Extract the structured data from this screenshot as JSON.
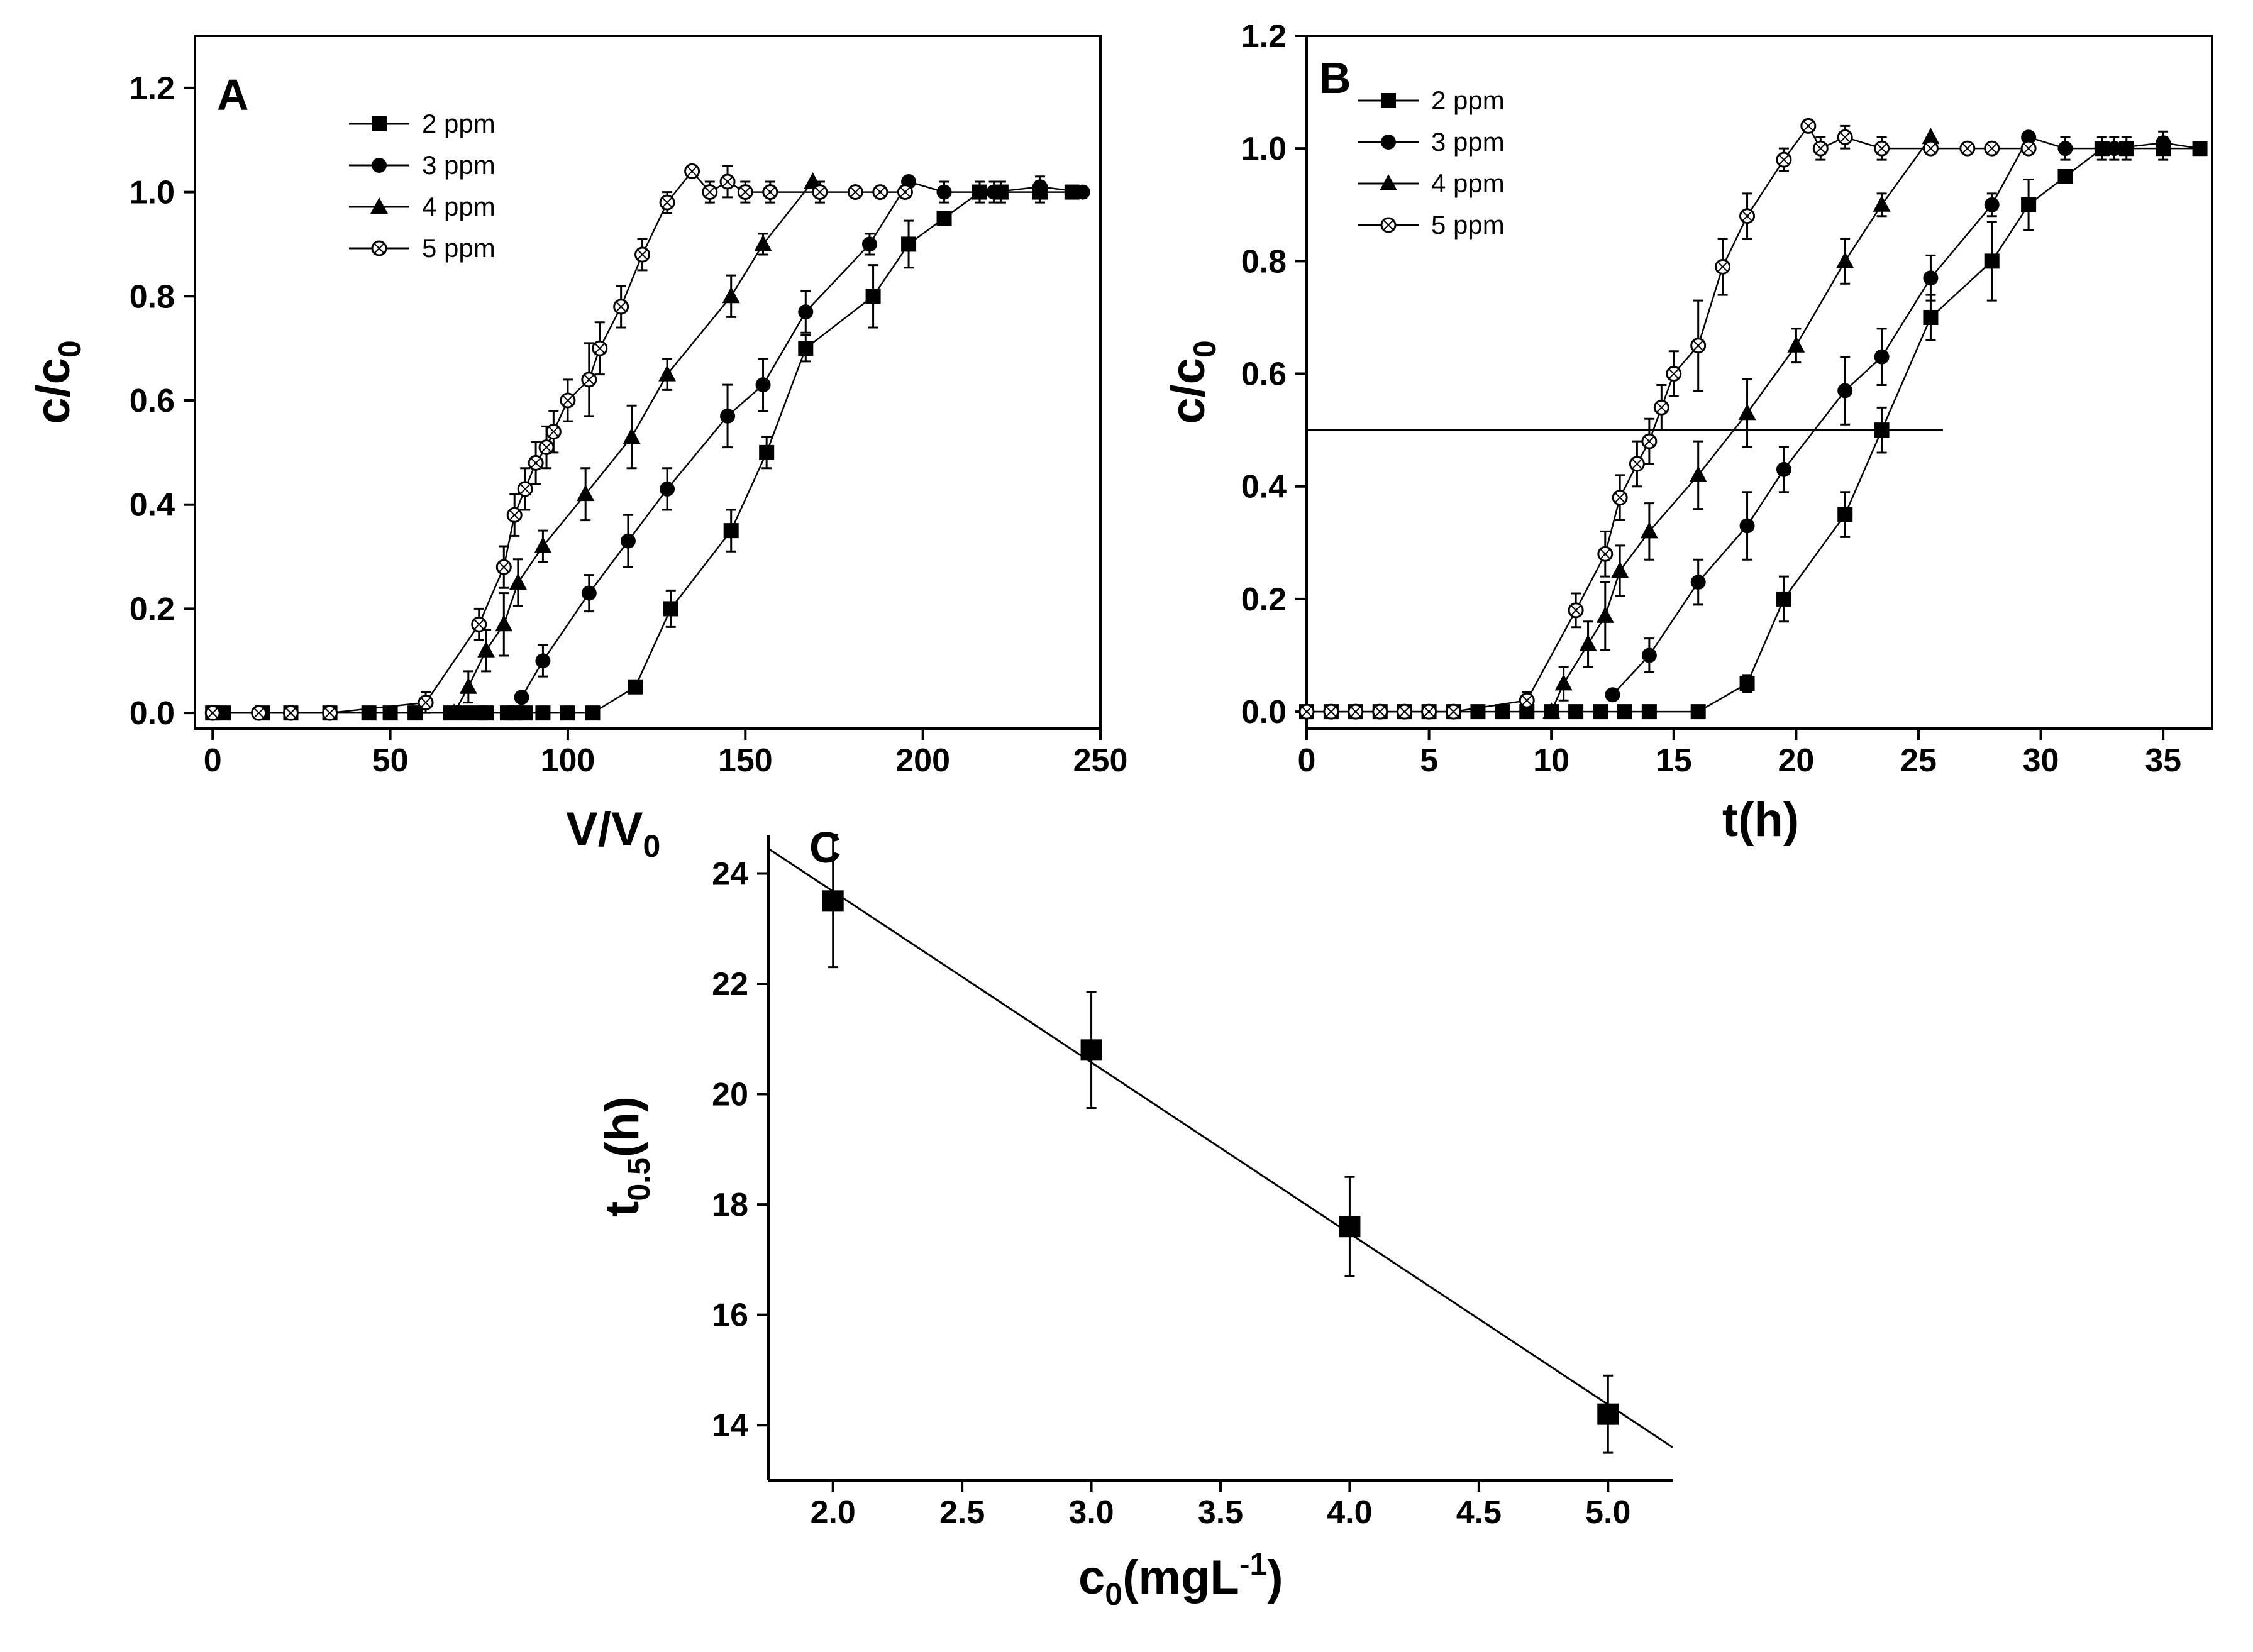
{
  "chart_data": [
    {
      "panel": "A",
      "type": "line",
      "xlabel": "V/V",
      "xlabel_sub": "0",
      "ylabel": "c/c",
      "ylabel_sub": "0",
      "xlim": [
        -5,
        250
      ],
      "ylim": [
        -0.03,
        1.3
      ],
      "xticks": [
        0,
        50,
        100,
        150,
        200,
        250
      ],
      "xtick_labels": [
        "0",
        "50",
        "100",
        "150",
        "200",
        "250"
      ],
      "yticks": [
        0.0,
        0.2,
        0.4,
        0.6,
        0.8,
        1.0,
        1.2
      ],
      "ytick_labels": [
        "0.0",
        "0.2",
        "0.4",
        "0.6",
        "0.8",
        "1.0",
        "1.2"
      ],
      "legend": [
        "2 ppm",
        "3 ppm",
        "4 ppm",
        "5 ppm"
      ],
      "series": [
        {
          "name": "2 ppm",
          "marker": "square",
          "x": [
            0,
            3,
            14,
            22,
            33,
            44,
            50,
            57,
            67,
            71,
            75,
            77,
            83,
            85,
            88,
            93,
            100,
            107,
            119,
            129,
            146,
            156,
            167,
            186,
            196,
            206,
            216,
            222,
            233,
            242
          ],
          "y": [
            0,
            0,
            0,
            0,
            0,
            0,
            0,
            0,
            0,
            0,
            0,
            0,
            0,
            0,
            0,
            0,
            0,
            0,
            0.05,
            0.2,
            0.35,
            0.5,
            0.7,
            0.8,
            0.9,
            0.95,
            1.0,
            1.0,
            1.0,
            1.0
          ],
          "err": [
            0,
            0,
            0,
            0,
            0,
            0,
            0,
            0,
            0,
            0,
            0,
            0,
            0,
            0,
            0,
            0,
            0,
            0,
            0.01,
            0.035,
            0.04,
            0.03,
            0.025,
            0.06,
            0.045,
            0,
            0.02,
            0.02,
            0.02,
            0
          ]
        },
        {
          "name": "3 ppm",
          "marker": "circle",
          "x": [
            87,
            93,
            106,
            117,
            128,
            145,
            155,
            167,
            185,
            196,
            206,
            220,
            233,
            245
          ],
          "y": [
            0.03,
            0.1,
            0.23,
            0.33,
            0.43,
            0.57,
            0.63,
            0.77,
            0.9,
            1.02,
            1.0,
            1.0,
            1.01,
            1.0
          ],
          "err": [
            0,
            0.03,
            0.035,
            0.05,
            0.04,
            0.06,
            0.05,
            0.04,
            0.02,
            0,
            0.02,
            0.02,
            0.02,
            0
          ]
        },
        {
          "name": "4 ppm",
          "marker": "triangle",
          "x": [
            68,
            72,
            77,
            82,
            86,
            93,
            105,
            118,
            128,
            146,
            155,
            169
          ],
          "y": [
            0,
            0.05,
            0.12,
            0.17,
            0.25,
            0.32,
            0.42,
            0.53,
            0.65,
            0.8,
            0.9,
            1.02
          ],
          "err": [
            0,
            0.03,
            0.04,
            0.06,
            0.045,
            0.03,
            0.05,
            0.06,
            0.03,
            0.04,
            0.02,
            0
          ]
        },
        {
          "name": "5 ppm",
          "marker": "circle-open",
          "x": [
            0,
            13,
            22,
            33,
            60,
            75,
            82,
            85,
            88,
            91,
            94,
            96,
            100,
            106,
            109,
            115,
            121,
            128,
            135,
            140,
            145,
            150,
            157,
            171,
            181,
            188,
            195
          ],
          "y": [
            0,
            0,
            0,
            0,
            0.02,
            0.17,
            0.28,
            0.38,
            0.43,
            0.48,
            0.51,
            0.54,
            0.6,
            0.64,
            0.7,
            0.78,
            0.88,
            0.98,
            1.04,
            1.0,
            1.02,
            1.0,
            1.0,
            1.0,
            1.0,
            1.0,
            1.0
          ],
          "err": [
            0,
            0,
            0,
            0,
            0.02,
            0.03,
            0.04,
            0.04,
            0.04,
            0.04,
            0.04,
            0.04,
            0.04,
            0.07,
            0.05,
            0.04,
            0.03,
            0.02,
            0,
            0.02,
            0.03,
            0.02,
            0.02,
            0.02,
            0,
            0,
            0
          ]
        }
      ]
    },
    {
      "panel": "B",
      "type": "line",
      "xlabel": "t(h)",
      "ylabel": "c/c",
      "ylabel_sub": "0",
      "xlim": [
        0,
        37
      ],
      "ylim": [
        -0.03,
        1.2
      ],
      "xticks": [
        0,
        5,
        10,
        15,
        20,
        25,
        30,
        35
      ],
      "xtick_labels": [
        "0",
        "5",
        "10",
        "15",
        "20",
        "25",
        "30",
        "35"
      ],
      "yticks": [
        0.0,
        0.2,
        0.4,
        0.6,
        0.8,
        1.0,
        1.2
      ],
      "ytick_labels": [
        "0.0",
        "0.2",
        "0.4",
        "0.6",
        "0.8",
        "1.0",
        "1.2"
      ],
      "legend": [
        "2 ppm",
        "3 ppm",
        "4 ppm",
        "5 ppm"
      ],
      "reference_line": {
        "y": 0.5,
        "x_from": 0,
        "x_to": 26
      },
      "series": [
        {
          "name": "2 ppm",
          "marker": "square",
          "x": [
            0,
            1,
            2,
            3,
            4,
            5,
            6,
            7,
            8,
            9,
            10,
            11,
            12,
            13,
            14,
            16,
            18,
            19.5,
            22,
            23.5,
            25.5,
            28,
            29.5,
            31,
            32.5,
            33.5,
            35,
            36.5
          ],
          "y": [
            0,
            0,
            0,
            0,
            0,
            0,
            0,
            0,
            0,
            0,
            0,
            0,
            0,
            0,
            0,
            0,
            0.05,
            0.2,
            0.35,
            0.5,
            0.7,
            0.8,
            0.9,
            0.95,
            1.0,
            1.0,
            1.0,
            1.0
          ],
          "err": [
            0,
            0,
            0,
            0,
            0,
            0,
            0,
            0,
            0,
            0,
            0,
            0,
            0,
            0,
            0,
            0,
            0.015,
            0.04,
            0.04,
            0.04,
            0.04,
            0.07,
            0.045,
            0,
            0.02,
            0.02,
            0.02,
            0
          ]
        },
        {
          "name": "3 ppm",
          "marker": "circle",
          "x": [
            12.5,
            14,
            16,
            18,
            19.5,
            22,
            23.5,
            25.5,
            28,
            29.5,
            31,
            33,
            35,
            36.5
          ],
          "y": [
            0.03,
            0.1,
            0.23,
            0.33,
            0.43,
            0.57,
            0.63,
            0.77,
            0.9,
            1.02,
            1.0,
            1.0,
            1.01,
            1.0
          ],
          "err": [
            0,
            0.03,
            0.04,
            0.06,
            0.04,
            0.06,
            0.05,
            0.04,
            0.02,
            0,
            0.02,
            0.02,
            0.02,
            0
          ]
        },
        {
          "name": "4 ppm",
          "marker": "triangle",
          "x": [
            10,
            10.5,
            11.5,
            12.2,
            12.8,
            14,
            16,
            18,
            20,
            22,
            23.5,
            25.5
          ],
          "y": [
            0,
            0.05,
            0.12,
            0.17,
            0.25,
            0.32,
            0.42,
            0.53,
            0.65,
            0.8,
            0.9,
            1.02
          ],
          "err": [
            0,
            0.03,
            0.04,
            0.06,
            0.045,
            0.05,
            0.06,
            0.06,
            0.03,
            0.04,
            0.02,
            0
          ]
        },
        {
          "name": "5 ppm",
          "marker": "circle-open",
          "x": [
            0,
            1,
            2,
            3,
            4,
            5,
            6,
            9,
            11,
            12.2,
            12.8,
            13.5,
            14,
            14.5,
            15,
            16,
            17,
            18,
            19.5,
            20.5,
            21,
            22,
            23.5,
            25.5,
            27,
            28,
            29.5
          ],
          "y": [
            0,
            0,
            0,
            0,
            0,
            0,
            0,
            0.02,
            0.18,
            0.28,
            0.38,
            0.44,
            0.48,
            0.54,
            0.6,
            0.65,
            0.79,
            0.88,
            0.98,
            1.04,
            1.0,
            1.02,
            1.0,
            1.0,
            1.0,
            1.0,
            1.0
          ],
          "err": [
            0,
            0,
            0,
            0,
            0,
            0,
            0,
            0.015,
            0.03,
            0.04,
            0.04,
            0.04,
            0.04,
            0.04,
            0.04,
            0.08,
            0.05,
            0.04,
            0.02,
            0,
            0.02,
            0.02,
            0.02,
            0,
            0,
            0,
            0
          ]
        }
      ]
    },
    {
      "panel": "C",
      "type": "scatter",
      "xlabel": "c",
      "xlabel_sub": "0",
      "xlabel_rest": "(mgL",
      "xlabel_sup": "-1",
      "xlabel_end": ")",
      "ylabel": "t",
      "ylabel_sub": "0.5",
      "ylabel_rest": "(h)",
      "xlim": [
        1.75,
        5.25
      ],
      "ylim": [
        13.0,
        24.7
      ],
      "xticks": [
        2.0,
        2.5,
        3.0,
        3.5,
        4.0,
        4.5,
        5.0
      ],
      "xtick_labels": [
        "2.0",
        "2.5",
        "3.0",
        "3.5",
        "4.0",
        "4.5",
        "5.0"
      ],
      "yticks": [
        14,
        16,
        18,
        20,
        22,
        24
      ],
      "ytick_labels": [
        "14",
        "16",
        "18",
        "20",
        "22",
        "24"
      ],
      "points": {
        "x": [
          2.0,
          3.0,
          4.0,
          5.0
        ],
        "y": [
          23.5,
          20.8,
          17.6,
          14.2
        ],
        "err": [
          1.2,
          1.05,
          0.9,
          0.7
        ]
      },
      "fit_line": {
        "x": [
          1.75,
          5.25
        ],
        "y": [
          24.45,
          13.6
        ]
      }
    }
  ]
}
